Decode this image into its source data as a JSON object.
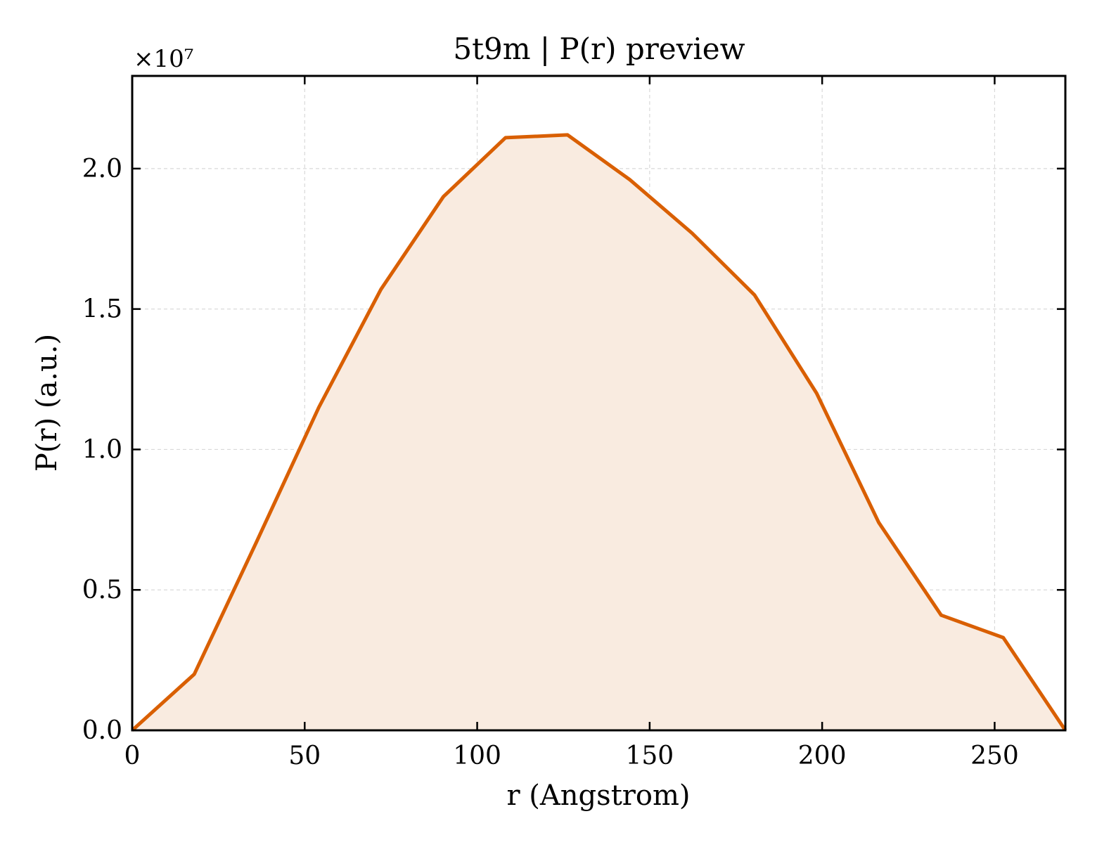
{
  "chart_data": {
    "type": "area",
    "title": "5t9m | P(r) preview",
    "xlabel": "r (Angstrom)",
    "ylabel": "P(r) (a.u.)",
    "y_offset_label": "×10⁷",
    "y_scale": 10000000,
    "xlim": [
      0,
      270.5
    ],
    "ylim": [
      0,
      2.33
    ],
    "x_ticks": [
      0,
      50,
      100,
      150,
      200,
      250
    ],
    "y_ticks": [
      0.0,
      0.5,
      1.0,
      1.5,
      2.0
    ],
    "x_tick_labels": [
      "0",
      "50",
      "100",
      "150",
      "200",
      "250"
    ],
    "y_tick_labels": [
      "0.0",
      "0.5",
      "1.0",
      "1.5",
      "2.0"
    ],
    "grid": true,
    "series": [
      {
        "x": [
          0,
          18,
          36,
          54.1,
          72.1,
          90.2,
          108.2,
          126.2,
          144.3,
          162.3,
          180.4,
          198.4,
          216.4,
          234.5,
          252.5,
          270.5
        ],
        "y": [
          0.0,
          0.2,
          0.67,
          1.15,
          1.57,
          1.9,
          2.11,
          2.12,
          1.96,
          1.77,
          1.55,
          1.2,
          0.74,
          0.41,
          0.33,
          0.0
        ]
      }
    ],
    "colors": {
      "line": "#d95f02",
      "fill": "#f9ebe0",
      "grid": "#d9d9d9",
      "axis": "#000000"
    }
  }
}
